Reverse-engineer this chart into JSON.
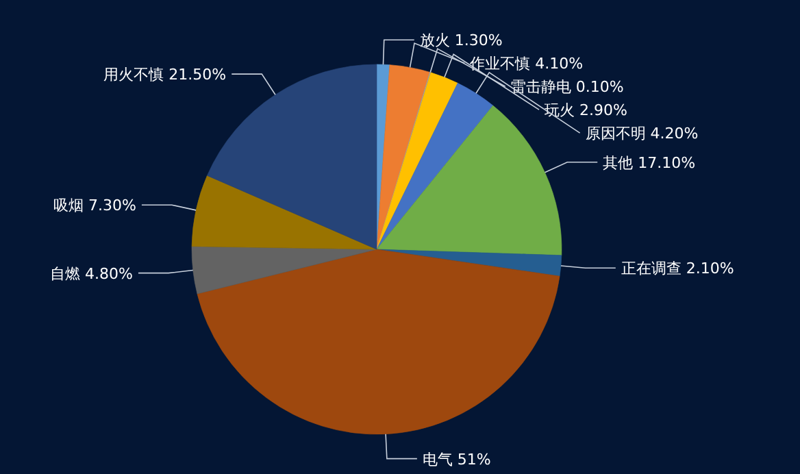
{
  "chart_data": {
    "type": "pie",
    "categories": [
      "放火",
      "作业不慎",
      "雷击静电",
      "玩火",
      "原因不明",
      "其他",
      "正在调查",
      "电气",
      "自燃",
      "吸烟",
      "用火不慎"
    ],
    "values": [
      1.3,
      4.1,
      0.1,
      2.9,
      4.2,
      17.1,
      2.1,
      51,
      4.8,
      7.3,
      21.5
    ],
    "value_labels": [
      "1.30%",
      "4.10%",
      "0.10%",
      "2.90%",
      "4.20%",
      "17.10%",
      "2.10%",
      "51%",
      "4.80%",
      "7.30%",
      "21.50%"
    ],
    "colors": [
      "#5b9bd5",
      "#ed7d31",
      "#a5a5a5",
      "#ffc000",
      "#4472c4",
      "#70ad47",
      "#255e91",
      "#9e480e",
      "#636363",
      "#997300",
      "#264478"
    ],
    "legend": false
  }
}
